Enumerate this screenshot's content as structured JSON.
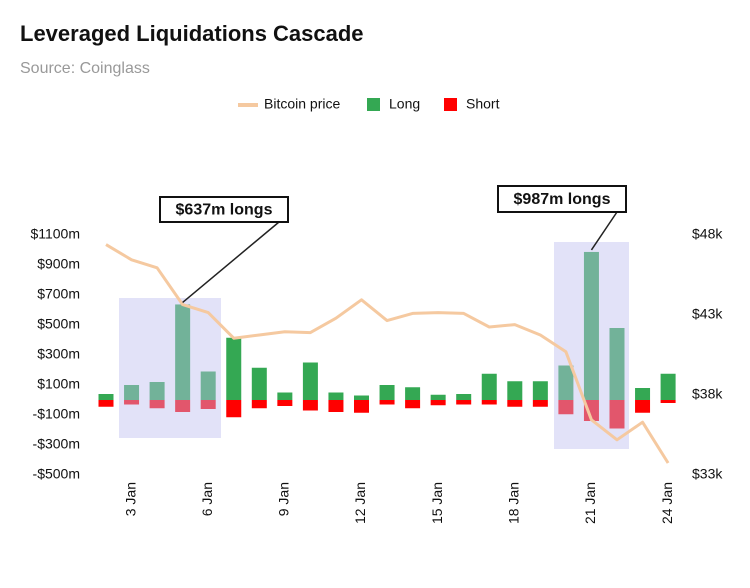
{
  "chart_data": {
    "type": "bar",
    "title": "Leveraged Liquidations Cascade",
    "subtitle": "Source: Coinglass",
    "categories": [
      null,
      "3 Jan",
      null,
      null,
      "6 Jan",
      null,
      null,
      "9 Jan",
      null,
      null,
      "12 Jan",
      null,
      null,
      "15 Jan",
      null,
      null,
      "18 Jan",
      null,
      null,
      "21 Jan",
      null,
      null,
      "24 Jan"
    ],
    "series": [
      {
        "name": "Bitcoin price",
        "color": "#f5c9a0",
        "type": "line",
        "axis": "y2",
        "values": [
          47400,
          46450,
          45950,
          43650,
          43150,
          41550,
          41750,
          41950,
          41900,
          42800,
          43950,
          42650,
          43100,
          43150,
          43100,
          42250,
          42400,
          41750,
          40700,
          36450,
          35200,
          36300,
          33750
        ]
      },
      {
        "name": "Long",
        "color": "#34a853",
        "values": [
          40,
          100,
          120,
          637,
          190,
          415,
          215,
          50,
          250,
          50,
          30,
          100,
          85,
          35,
          40,
          175,
          125,
          125,
          230,
          987,
          480,
          80,
          175
        ]
      },
      {
        "name": "Short",
        "color": "#ff0000",
        "values": [
          -45,
          -30,
          -55,
          -80,
          -60,
          -115,
          -55,
          -40,
          -70,
          -80,
          -85,
          -30,
          -55,
          -35,
          -30,
          -30,
          -45,
          -45,
          -95,
          -140,
          -190,
          -85,
          -20
        ]
      }
    ],
    "annotations": [
      "$637m longs",
      "$987m longs"
    ],
    "ylim": [
      -500,
      1100
    ],
    "yticks": [
      {
        "value": 1100,
        "label": "$1100m"
      },
      {
        "value": 900,
        "label": "$900m"
      },
      {
        "value": 700,
        "label": "$700m"
      },
      {
        "value": 500,
        "label": "$500m"
      },
      {
        "value": 300,
        "label": "$300m"
      },
      {
        "value": 100,
        "label": "$100m"
      },
      {
        "value": -100,
        "label": "-$100m"
      },
      {
        "value": -300,
        "label": "-$300m"
      },
      {
        "value": -500,
        "label": "-$500m"
      }
    ],
    "y2lim": [
      33000,
      48000
    ],
    "y2ticks": [
      {
        "value": 48000,
        "label": "$48k"
      },
      {
        "value": 43000,
        "label": "$43k"
      },
      {
        "value": 38000,
        "label": "$38k"
      },
      {
        "value": 33000,
        "label": "$33k"
      }
    ],
    "legend": "top"
  }
}
